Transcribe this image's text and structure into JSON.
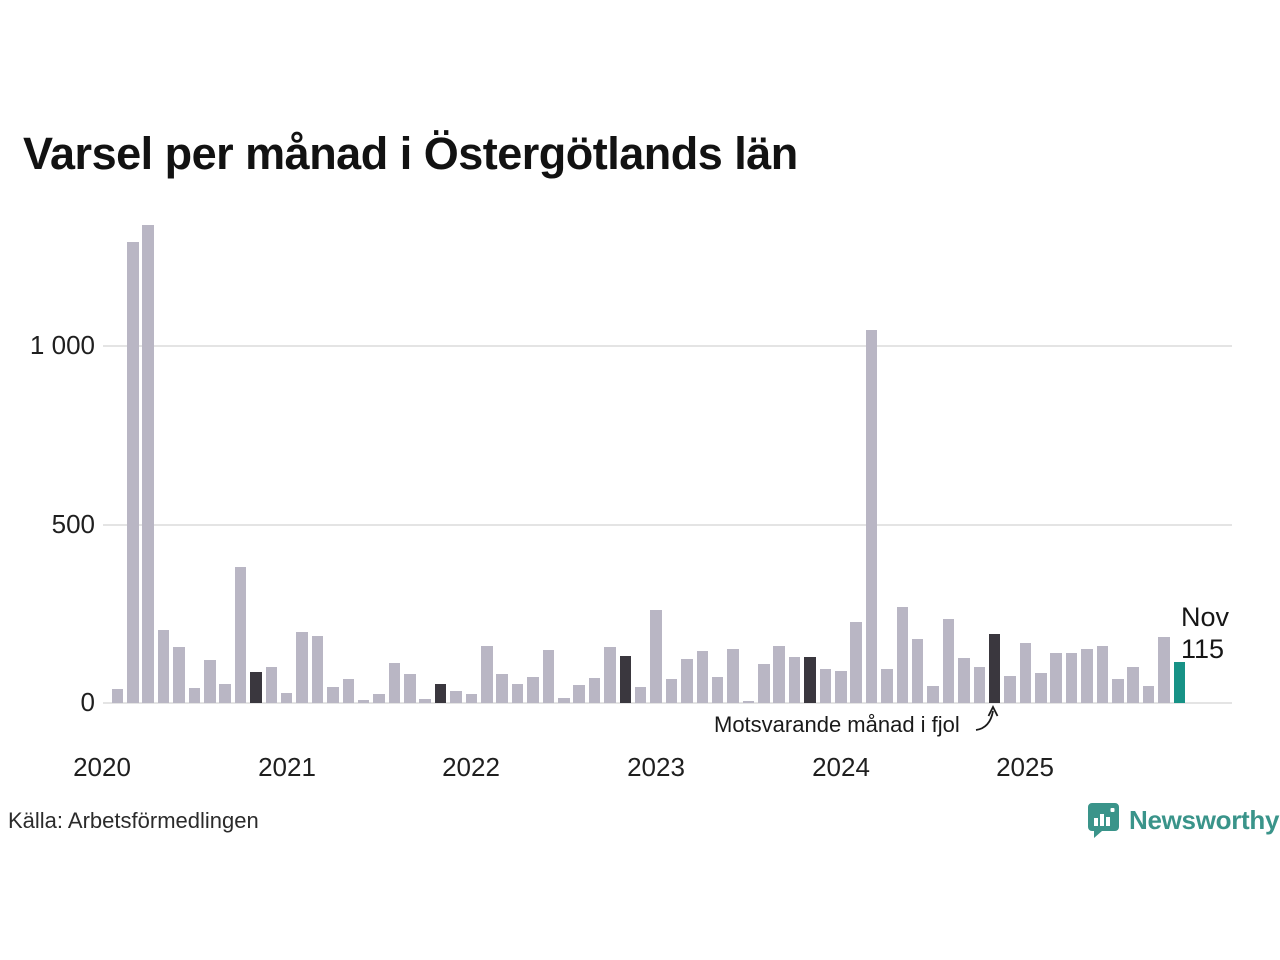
{
  "title": "Varsel per månad i Östergötlands län",
  "source": "Källa: Arbetsförmedlingen",
  "brand": {
    "name": "Newsworthy",
    "color": "#3a948a",
    "icon": "bar-chart-speech-bubble-icon"
  },
  "annotation": {
    "text": "Motsvarande månad i fjol",
    "points_to": "nov 2024"
  },
  "highlight_label": {
    "line1": "Nov",
    "line2": "115"
  },
  "colors": {
    "bar_normal": "#b9b6c4",
    "bar_fjol": "#3a373e",
    "bar_current": "#179286",
    "grid": "#e4e4e4",
    "text": "#1a1a1a"
  },
  "chart_data": {
    "type": "bar",
    "title": "Varsel per månad i Östergötlands län",
    "xlabel": "",
    "ylabel": "",
    "ylim": [
      0,
      1400
    ],
    "grid": "horizontal",
    "yticks": [
      {
        "value": 0,
        "label": "0"
      },
      {
        "value": 500,
        "label": "500"
      },
      {
        "value": 1000,
        "label": "1 000"
      }
    ],
    "x_year_labels": [
      "2020",
      "2021",
      "2022",
      "2023",
      "2024",
      "2025"
    ],
    "labels": [
      "jan 2020",
      "feb 2020",
      "mar 2020",
      "apr 2020",
      "maj 2020",
      "jun 2020",
      "jul 2020",
      "aug 2020",
      "sep 2020",
      "okt 2020",
      "nov 2020",
      "dec 2020",
      "jan 2021",
      "feb 2021",
      "mar 2021",
      "apr 2021",
      "maj 2021",
      "jun 2021",
      "jul 2021",
      "aug 2021",
      "sep 2021",
      "okt 2021",
      "nov 2021",
      "dec 2021",
      "jan 2022",
      "feb 2022",
      "mar 2022",
      "apr 2022",
      "maj 2022",
      "jun 2022",
      "jul 2022",
      "aug 2022",
      "sep 2022",
      "okt 2022",
      "nov 2022",
      "dec 2022",
      "jan 2023",
      "feb 2023",
      "mar 2023",
      "apr 2023",
      "maj 2023",
      "jun 2023",
      "jul 2023",
      "aug 2023",
      "sep 2023",
      "okt 2023",
      "nov 2023",
      "dec 2023",
      "jan 2024",
      "feb 2024",
      "mar 2024",
      "apr 2024",
      "maj 2024",
      "jun 2024",
      "jul 2024",
      "aug 2024",
      "sep 2024",
      "okt 2024",
      "nov 2024",
      "dec 2024",
      "jan 2025",
      "feb 2025",
      "mar 2025",
      "apr 2025",
      "maj 2025",
      "jun 2025",
      "jul 2025",
      "aug 2025",
      "sep 2025",
      "okt 2025",
      "nov 2025"
    ],
    "values": [
      0,
      40,
      1290,
      1340,
      205,
      157,
      42,
      120,
      52,
      380,
      88,
      102,
      27,
      200,
      189,
      46,
      66,
      8,
      26,
      112,
      80,
      10,
      52,
      34,
      25,
      160,
      81,
      52,
      73,
      148,
      14,
      50,
      70,
      156,
      132,
      46,
      260,
      66,
      124,
      145,
      74,
      152,
      7,
      108,
      160,
      129,
      128,
      95,
      91,
      227,
      1045,
      94,
      269,
      180,
      47,
      234,
      125,
      100,
      194,
      77,
      167,
      85,
      141,
      139,
      152,
      160,
      68,
      102,
      48,
      185,
      115
    ],
    "fjol_indices": [
      10,
      22,
      34,
      46,
      58
    ],
    "current_index": 70,
    "legend_position": "none"
  }
}
